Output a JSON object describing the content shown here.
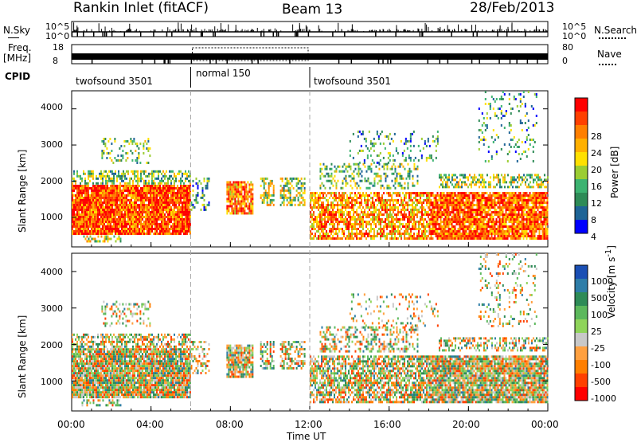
{
  "header": {
    "station": "Rankin Inlet (fitACF)",
    "beam": "Beam 13",
    "date": "28/Feb/2013"
  },
  "panels": {
    "nsky": {
      "left_label": "N.Sky",
      "right_label": "N.Search",
      "ticks_left": [
        "10^5",
        "10^0"
      ],
      "ticks_right": [
        "10^5",
        "10^0"
      ]
    },
    "freq": {
      "left_label_1": "Freq.",
      "left_label_2": "[MHz]",
      "ticks_left": [
        "18",
        "8"
      ],
      "right_label": "Nave",
      "ticks_right": [
        "80",
        "0"
      ]
    },
    "cpid": {
      "label": "CPID",
      "segments": [
        {
          "label": "twofsound 3501",
          "start": 0,
          "end": 6
        },
        {
          "label": "normal 150",
          "start": 6,
          "end": 12
        },
        {
          "label": "twofsound 3501",
          "start": 12,
          "end": 24
        }
      ]
    }
  },
  "chart_data": [
    {
      "type": "heatmap",
      "panel": "power",
      "ylabel": "Slant Range [km]",
      "yticks": [
        "4000",
        "3000",
        "2000",
        "1000"
      ],
      "ylim": [
        180,
        4500
      ],
      "xlim_hours": [
        0,
        24
      ],
      "colorbar": {
        "title": "Power [dB]",
        "ticks": [
          "28",
          "24",
          "20",
          "16",
          "12",
          "8",
          "4"
        ],
        "colors": [
          "#ff0000",
          "#ff4000",
          "#ff7f00",
          "#ffb000",
          "#ffe000",
          "#9bcd32",
          "#3cb371",
          "#2e8b57",
          "#1e6496",
          "#0000ff"
        ]
      }
    },
    {
      "type": "heatmap",
      "panel": "velocity",
      "ylabel": "Slant Range [km]",
      "yticks": [
        "4000",
        "3000",
        "2000",
        "1000"
      ],
      "ylim": [
        180,
        4500
      ],
      "xlim_hours": [
        0,
        24
      ],
      "xlabel": "Time UT",
      "xticks": [
        "00:00",
        "04:00",
        "08:00",
        "12:00",
        "16:00",
        "20:00",
        "00:00"
      ],
      "colorbar": {
        "title": "Velocity [m s^-1]",
        "ticks": [
          "1000",
          "500",
          "100",
          "25",
          "-25",
          "-100",
          "-500",
          "-1000"
        ],
        "colors": [
          "#1a4fb4",
          "#2e7da8",
          "#2e8b57",
          "#5cb85c",
          "#8fd45a",
          "#c8c8c8",
          "#ffa040",
          "#ff7f00",
          "#ff4000",
          "#ff0000"
        ]
      }
    }
  ]
}
